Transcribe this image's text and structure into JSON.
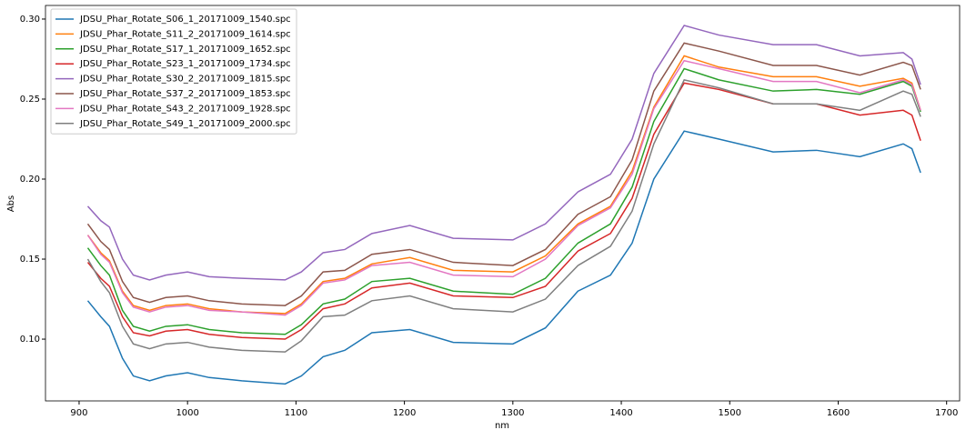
{
  "chart_data": {
    "type": "line",
    "xlabel": "nm",
    "ylabel": "Abs",
    "x": [
      908,
      920,
      928,
      940,
      950,
      965,
      980,
      1000,
      1020,
      1050,
      1090,
      1105,
      1125,
      1145,
      1170,
      1205,
      1245,
      1300,
      1330,
      1360,
      1390,
      1410,
      1430,
      1458,
      1490,
      1540,
      1580,
      1620,
      1660,
      1668,
      1676
    ],
    "series": [
      {
        "name": "JDSU_Phar_Rotate_S06_1_20171009_1540.spc",
        "color": "#1f77b4",
        "values": [
          0.124,
          0.114,
          0.108,
          0.088,
          0.077,
          0.074,
          0.077,
          0.079,
          0.076,
          0.074,
          0.072,
          0.077,
          0.089,
          0.093,
          0.104,
          0.106,
          0.098,
          0.097,
          0.107,
          0.13,
          0.14,
          0.16,
          0.2,
          0.23,
          0.225,
          0.217,
          0.218,
          0.214,
          0.222,
          0.219,
          0.204
        ]
      },
      {
        "name": "JDSU_Phar_Rotate_S11_2_20171009_1614.spc",
        "color": "#ff7f0e",
        "values": [
          0.165,
          0.154,
          0.149,
          0.13,
          0.121,
          0.118,
          0.121,
          0.122,
          0.119,
          0.117,
          0.116,
          0.122,
          0.136,
          0.138,
          0.147,
          0.151,
          0.143,
          0.142,
          0.152,
          0.172,
          0.183,
          0.205,
          0.245,
          0.277,
          0.27,
          0.264,
          0.264,
          0.258,
          0.263,
          0.26,
          0.243
        ]
      },
      {
        "name": "JDSU_Phar_Rotate_S17_1_20171009_1652.spc",
        "color": "#2ca02c",
        "values": [
          0.157,
          0.146,
          0.14,
          0.118,
          0.108,
          0.105,
          0.108,
          0.109,
          0.106,
          0.104,
          0.103,
          0.109,
          0.122,
          0.125,
          0.136,
          0.138,
          0.13,
          0.128,
          0.138,
          0.16,
          0.172,
          0.195,
          0.236,
          0.269,
          0.262,
          0.255,
          0.256,
          0.253,
          0.261,
          0.258,
          0.242
        ]
      },
      {
        "name": "JDSU_Phar_Rotate_S23_1_20171009_1734.spc",
        "color": "#d62728",
        "values": [
          0.148,
          0.138,
          0.133,
          0.114,
          0.104,
          0.102,
          0.105,
          0.106,
          0.103,
          0.101,
          0.1,
          0.106,
          0.119,
          0.122,
          0.132,
          0.135,
          0.127,
          0.126,
          0.133,
          0.155,
          0.166,
          0.188,
          0.228,
          0.26,
          0.256,
          0.247,
          0.247,
          0.24,
          0.243,
          0.24,
          0.224
        ]
      },
      {
        "name": "JDSU_Phar_Rotate_S30_2_20171009_1815.spc",
        "color": "#9467bd",
        "values": [
          0.183,
          0.174,
          0.17,
          0.15,
          0.14,
          0.137,
          0.14,
          0.142,
          0.139,
          0.138,
          0.137,
          0.142,
          0.154,
          0.156,
          0.166,
          0.171,
          0.163,
          0.162,
          0.172,
          0.192,
          0.203,
          0.225,
          0.266,
          0.296,
          0.29,
          0.284,
          0.284,
          0.277,
          0.279,
          0.275,
          0.259
        ]
      },
      {
        "name": "JDSU_Phar_Rotate_S37_2_20171009_1853.spc",
        "color": "#8c564b",
        "values": [
          0.172,
          0.161,
          0.156,
          0.136,
          0.126,
          0.123,
          0.126,
          0.127,
          0.124,
          0.122,
          0.121,
          0.127,
          0.142,
          0.143,
          0.153,
          0.156,
          0.148,
          0.146,
          0.156,
          0.178,
          0.189,
          0.212,
          0.255,
          0.285,
          0.28,
          0.271,
          0.271,
          0.265,
          0.273,
          0.271,
          0.256
        ]
      },
      {
        "name": "JDSU_Phar_Rotate_S43_2_20171009_1928.spc",
        "color": "#e377c2",
        "values": [
          0.165,
          0.153,
          0.148,
          0.129,
          0.12,
          0.117,
          0.12,
          0.121,
          0.118,
          0.117,
          0.115,
          0.121,
          0.135,
          0.137,
          0.146,
          0.148,
          0.14,
          0.139,
          0.15,
          0.171,
          0.182,
          0.203,
          0.244,
          0.274,
          0.269,
          0.261,
          0.261,
          0.254,
          0.262,
          0.259,
          0.243
        ]
      },
      {
        "name": "JDSU_Phar_Rotate_S49_1_20171009_2000.spc",
        "color": "#7f7f7f",
        "values": [
          0.15,
          0.136,
          0.129,
          0.108,
          0.097,
          0.094,
          0.097,
          0.098,
          0.095,
          0.093,
          0.092,
          0.099,
          0.114,
          0.115,
          0.124,
          0.127,
          0.119,
          0.117,
          0.125,
          0.146,
          0.158,
          0.18,
          0.222,
          0.262,
          0.257,
          0.247,
          0.247,
          0.243,
          0.255,
          0.253,
          0.239
        ]
      }
    ],
    "xlim": [
      869,
      1712
    ],
    "ylim": [
      0.0614,
      0.3085
    ],
    "xticks": [
      900,
      1000,
      1100,
      1200,
      1300,
      1400,
      1500,
      1600,
      1700
    ],
    "yticks": [
      {
        "value": 0.1,
        "label": "0.10"
      },
      0.15,
      {
        "value": 0.2,
        "label": "0.20"
      },
      0.25,
      {
        "value": 0.3,
        "label": "0.30"
      }
    ],
    "legend": "upper-left"
  }
}
